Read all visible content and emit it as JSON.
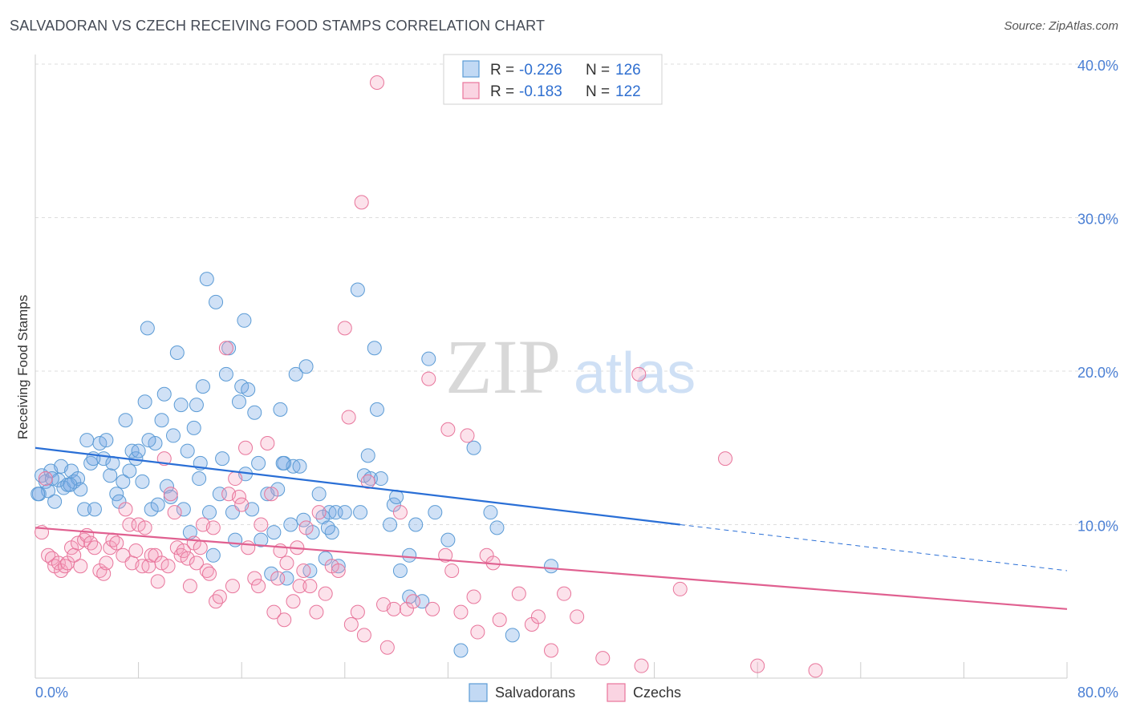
{
  "title": "SALVADORAN VS CZECH RECEIVING FOOD STAMPS CORRELATION CHART",
  "source": "Source: ZipAtlas.com",
  "watermark": {
    "zip": "ZIP",
    "atlas": "atlas"
  },
  "colors": {
    "blue": "#5b9bd5",
    "blue_fill": "rgba(120,170,230,0.35)",
    "blue_line": "#2a6fd6",
    "pink": "#e8759b",
    "pink_fill": "rgba(245,160,190,0.30)",
    "pink_line": "#e06090"
  },
  "legend_box": {
    "rows": [
      {
        "r_label": "R =",
        "r_value": "-0.226",
        "n_label": "N =",
        "n_value": "126"
      },
      {
        "r_label": "R =",
        "r_value": "-0.183",
        "n_label": "N =",
        "n_value": "122"
      }
    ]
  },
  "bottom_legend": [
    "Salvadorans",
    "Czechs"
  ],
  "chart_data": {
    "type": "scatter",
    "title": "SALVADORAN VS CZECH RECEIVING FOOD STAMPS CORRELATION CHART",
    "xlabel": "",
    "ylabel": "Receiving Food Stamps",
    "xlim": [
      0,
      80
    ],
    "ylim": [
      0,
      40
    ],
    "x_tick_labels": [
      "0.0%",
      "80.0%"
    ],
    "y_tick_labels": [
      "10.0%",
      "20.0%",
      "30.0%",
      "40.0%"
    ],
    "y_ticks": [
      10,
      20,
      30,
      40
    ],
    "grid": true,
    "legend_position": "top-center",
    "series": [
      {
        "name": "Salvadorans",
        "trend": {
          "x": [
            0,
            50
          ],
          "y": [
            15.0,
            10.0
          ],
          "dashed_extension": {
            "x": [
              50,
              80
            ],
            "y": [
              10.0,
              7.0
            ]
          }
        },
        "points": [
          [
            0.3,
            12.0
          ],
          [
            0.5,
            13.2
          ],
          [
            0.8,
            12.8
          ],
          [
            1.0,
            12.2
          ],
          [
            1.2,
            13.5
          ],
          [
            1.5,
            11.5
          ],
          [
            1.8,
            12.9
          ],
          [
            2.0,
            13.8
          ],
          [
            2.2,
            12.4
          ],
          [
            2.5,
            12.6
          ],
          [
            2.8,
            13.5
          ],
          [
            3.0,
            12.8
          ],
          [
            3.3,
            13.0
          ],
          [
            3.5,
            12.3
          ],
          [
            3.8,
            11.0
          ],
          [
            4.0,
            15.5
          ],
          [
            4.3,
            14.0
          ],
          [
            4.6,
            11.0
          ],
          [
            5.0,
            15.3
          ],
          [
            5.3,
            14.3
          ],
          [
            5.5,
            15.5
          ],
          [
            5.8,
            13.2
          ],
          [
            6.0,
            14.0
          ],
          [
            6.3,
            12.0
          ],
          [
            6.5,
            11.5
          ],
          [
            6.8,
            12.8
          ],
          [
            7.0,
            16.8
          ],
          [
            7.3,
            13.5
          ],
          [
            7.5,
            14.8
          ],
          [
            7.8,
            14.3
          ],
          [
            8.0,
            14.8
          ],
          [
            8.3,
            12.8
          ],
          [
            8.5,
            18.0
          ],
          [
            8.7,
            22.8
          ],
          [
            9.0,
            11.0
          ],
          [
            9.3,
            15.3
          ],
          [
            9.5,
            11.3
          ],
          [
            9.8,
            16.8
          ],
          [
            10.0,
            18.5
          ],
          [
            10.2,
            12.5
          ],
          [
            10.5,
            11.8
          ],
          [
            10.7,
            15.8
          ],
          [
            11.0,
            21.2
          ],
          [
            11.3,
            17.8
          ],
          [
            11.5,
            11.0
          ],
          [
            11.8,
            14.8
          ],
          [
            12.0,
            9.5
          ],
          [
            12.3,
            16.3
          ],
          [
            12.5,
            17.8
          ],
          [
            12.8,
            14.0
          ],
          [
            13.0,
            19.0
          ],
          [
            13.3,
            26.0
          ],
          [
            13.5,
            10.8
          ],
          [
            13.8,
            8.0
          ],
          [
            14.0,
            24.5
          ],
          [
            14.3,
            12.0
          ],
          [
            14.5,
            14.3
          ],
          [
            14.8,
            19.8
          ],
          [
            15.0,
            21.5
          ],
          [
            15.3,
            10.8
          ],
          [
            15.5,
            9.0
          ],
          [
            15.8,
            18.0
          ],
          [
            16.0,
            19.0
          ],
          [
            16.2,
            23.3
          ],
          [
            16.5,
            18.8
          ],
          [
            16.8,
            11.0
          ],
          [
            17.0,
            17.3
          ],
          [
            17.3,
            14.0
          ],
          [
            17.5,
            9.0
          ],
          [
            18.0,
            12.0
          ],
          [
            18.3,
            6.8
          ],
          [
            18.5,
            9.5
          ],
          [
            18.8,
            12.3
          ],
          [
            19.0,
            17.5
          ],
          [
            19.3,
            14.0
          ],
          [
            19.5,
            6.5
          ],
          [
            19.8,
            10.0
          ],
          [
            20.0,
            13.8
          ],
          [
            20.2,
            19.8
          ],
          [
            20.5,
            13.8
          ],
          [
            20.8,
            10.3
          ],
          [
            21.0,
            20.3
          ],
          [
            21.3,
            7.0
          ],
          [
            21.5,
            9.5
          ],
          [
            22.0,
            12.0
          ],
          [
            22.3,
            10.5
          ],
          [
            22.5,
            7.8
          ],
          [
            22.8,
            10.8
          ],
          [
            23.0,
            9.5
          ],
          [
            23.3,
            10.8
          ],
          [
            23.5,
            7.3
          ],
          [
            24.0,
            10.8
          ],
          [
            25.0,
            25.3
          ],
          [
            25.5,
            13.2
          ],
          [
            25.8,
            14.5
          ],
          [
            26.0,
            13.0
          ],
          [
            26.3,
            21.5
          ],
          [
            26.5,
            17.5
          ],
          [
            27.5,
            10.0
          ],
          [
            27.8,
            11.3
          ],
          [
            28.0,
            11.8
          ],
          [
            28.3,
            7.0
          ],
          [
            29.0,
            5.3
          ],
          [
            29.5,
            10.0
          ],
          [
            30.0,
            5.0
          ],
          [
            30.5,
            20.8
          ],
          [
            31.0,
            10.8
          ],
          [
            32.0,
            9.0
          ],
          [
            33.0,
            1.8
          ],
          [
            34.0,
            15.0
          ],
          [
            35.3,
            10.8
          ],
          [
            35.8,
            9.8
          ],
          [
            37.0,
            2.8
          ],
          [
            40.0,
            7.3
          ],
          [
            0.2,
            12.0
          ],
          [
            1.3,
            13.0
          ],
          [
            2.7,
            12.6
          ],
          [
            4.5,
            14.3
          ],
          [
            8.8,
            15.5
          ],
          [
            12.7,
            13.0
          ],
          [
            16.3,
            13.3
          ],
          [
            19.2,
            14.0
          ],
          [
            22.7,
            9.8
          ],
          [
            25.2,
            10.8
          ],
          [
            26.8,
            13.0
          ],
          [
            29.0,
            8.0
          ]
        ]
      },
      {
        "name": "Czechs",
        "trend": {
          "x": [
            0,
            80
          ],
          "y": [
            9.8,
            4.5
          ]
        },
        "points": [
          [
            0.5,
            9.5
          ],
          [
            0.8,
            13.0
          ],
          [
            1.0,
            8.0
          ],
          [
            1.3,
            7.8
          ],
          [
            1.5,
            7.3
          ],
          [
            1.8,
            7.5
          ],
          [
            2.0,
            7.0
          ],
          [
            2.3,
            7.3
          ],
          [
            2.5,
            7.5
          ],
          [
            2.8,
            8.5
          ],
          [
            3.0,
            8.0
          ],
          [
            3.3,
            8.8
          ],
          [
            3.5,
            7.3
          ],
          [
            3.8,
            9.0
          ],
          [
            4.0,
            9.3
          ],
          [
            4.3,
            8.8
          ],
          [
            4.6,
            8.5
          ],
          [
            5.0,
            7.0
          ],
          [
            5.3,
            6.8
          ],
          [
            5.5,
            7.5
          ],
          [
            5.8,
            8.5
          ],
          [
            6.0,
            9.0
          ],
          [
            6.3,
            8.8
          ],
          [
            6.8,
            8.0
          ],
          [
            7.0,
            11.0
          ],
          [
            7.3,
            10.0
          ],
          [
            7.5,
            7.5
          ],
          [
            7.8,
            8.3
          ],
          [
            8.0,
            10.0
          ],
          [
            8.3,
            7.3
          ],
          [
            8.5,
            9.8
          ],
          [
            8.8,
            7.3
          ],
          [
            9.0,
            8.0
          ],
          [
            9.3,
            8.0
          ],
          [
            9.5,
            6.3
          ],
          [
            9.8,
            7.5
          ],
          [
            10.0,
            14.3
          ],
          [
            10.3,
            7.3
          ],
          [
            10.5,
            12.0
          ],
          [
            10.8,
            10.8
          ],
          [
            11.0,
            8.5
          ],
          [
            11.3,
            8.0
          ],
          [
            11.5,
            8.3
          ],
          [
            11.8,
            7.8
          ],
          [
            12.0,
            6.0
          ],
          [
            12.3,
            8.8
          ],
          [
            12.5,
            7.5
          ],
          [
            12.8,
            8.5
          ],
          [
            13.0,
            10.0
          ],
          [
            13.3,
            7.0
          ],
          [
            13.5,
            6.8
          ],
          [
            13.8,
            9.8
          ],
          [
            14.0,
            5.0
          ],
          [
            14.3,
            5.3
          ],
          [
            14.8,
            21.5
          ],
          [
            15.0,
            12.0
          ],
          [
            15.3,
            6.0
          ],
          [
            15.5,
            13.0
          ],
          [
            15.8,
            11.8
          ],
          [
            16.0,
            11.3
          ],
          [
            16.3,
            15.0
          ],
          [
            16.5,
            8.5
          ],
          [
            17.0,
            6.5
          ],
          [
            17.3,
            6.0
          ],
          [
            17.5,
            10.0
          ],
          [
            18.0,
            15.3
          ],
          [
            18.3,
            12.0
          ],
          [
            18.5,
            4.3
          ],
          [
            18.8,
            6.5
          ],
          [
            19.0,
            8.3
          ],
          [
            19.3,
            3.8
          ],
          [
            19.5,
            7.5
          ],
          [
            20.0,
            5.0
          ],
          [
            20.3,
            8.5
          ],
          [
            20.5,
            6.0
          ],
          [
            20.8,
            7.0
          ],
          [
            21.0,
            9.8
          ],
          [
            21.3,
            6.0
          ],
          [
            21.8,
            4.3
          ],
          [
            22.0,
            10.8
          ],
          [
            22.5,
            5.5
          ],
          [
            23.0,
            7.3
          ],
          [
            23.5,
            7.0
          ],
          [
            24.0,
            22.8
          ],
          [
            24.3,
            17.0
          ],
          [
            24.5,
            3.5
          ],
          [
            25.0,
            4.3
          ],
          [
            25.3,
            31.0
          ],
          [
            25.5,
            2.8
          ],
          [
            25.8,
            12.8
          ],
          [
            26.5,
            38.8
          ],
          [
            27.0,
            4.8
          ],
          [
            27.3,
            2.0
          ],
          [
            27.8,
            4.5
          ],
          [
            28.3,
            10.8
          ],
          [
            28.8,
            4.5
          ],
          [
            29.3,
            5.0
          ],
          [
            30.5,
            19.5
          ],
          [
            30.8,
            4.5
          ],
          [
            31.8,
            8.0
          ],
          [
            32.0,
            16.2
          ],
          [
            32.3,
            7.0
          ],
          [
            33.0,
            4.3
          ],
          [
            33.5,
            15.8
          ],
          [
            34.0,
            5.3
          ],
          [
            34.3,
            3.0
          ],
          [
            35.0,
            8.0
          ],
          [
            35.5,
            7.5
          ],
          [
            36.0,
            3.8
          ],
          [
            37.5,
            5.5
          ],
          [
            38.5,
            3.5
          ],
          [
            39.0,
            4.0
          ],
          [
            40.0,
            1.8
          ],
          [
            41.0,
            5.5
          ],
          [
            42.0,
            4.0
          ],
          [
            44.0,
            1.3
          ],
          [
            46.8,
            19.8
          ],
          [
            47.0,
            0.8
          ],
          [
            50.0,
            5.8
          ],
          [
            53.5,
            14.3
          ],
          [
            56.0,
            0.8
          ],
          [
            60.5,
            0.5
          ]
        ]
      }
    ]
  }
}
